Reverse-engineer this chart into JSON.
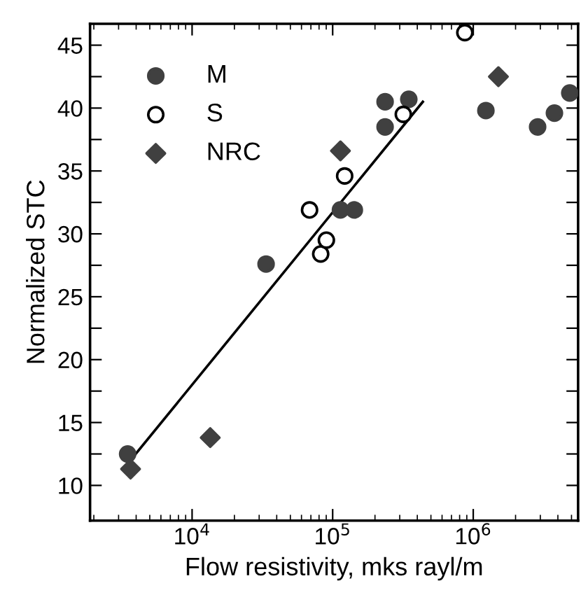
{
  "chart_data": {
    "type": "scatter",
    "xlabel": "Flow resistivity, mks rayl/m",
    "ylabel": "Normalized STC",
    "log": "x",
    "xlim": [
      1880,
      5570000
    ],
    "ylim": [
      7.2,
      46.7
    ],
    "xticks": [
      {
        "value": 10000,
        "label": "10$^{4}$"
      },
      {
        "value": 100000,
        "label": "10$^{5}$"
      },
      {
        "value": 1000000,
        "label": "10$^{6}$"
      }
    ],
    "yticks": [
      10,
      {
        "value": 12.5,
        "label": null
      },
      15,
      {
        "value": 17.5,
        "label": null
      },
      20,
      {
        "value": 22.5,
        "label": null
      },
      25,
      {
        "value": 27.5,
        "label": null
      },
      30,
      {
        "value": 32.5,
        "label": null
      },
      35,
      {
        "value": 37.5,
        "label": null
      },
      40,
      {
        "value": 42.5,
        "label": null
      },
      45
    ],
    "legend": "top left",
    "grid": false,
    "series": [
      {
        "name": "M",
        "color": "#404040",
        "marker": "circle",
        "x": [
          3480,
          33600,
          113600,
          142600,
          236000,
          236000,
          348000,
          1230000,
          2870000,
          3780000,
          4860000
        ],
        "values": [
          12.5,
          27.6,
          31.9,
          31.9,
          40.5,
          38.5,
          40.7,
          39.8,
          38.5,
          39.6,
          41.2
        ]
      },
      {
        "name": "S",
        "color": "#ffffff",
        "marker": "circle",
        "x": [
          82200,
          90200,
          68500,
          121700,
          318000,
          871000
        ],
        "values": [
          28.4,
          29.5,
          31.9,
          34.6,
          39.5,
          46.0
        ]
      },
      {
        "name": "NRC",
        "color": "#404040",
        "marker": "diamond",
        "x": [
          3650,
          13460,
          113600,
          1510000
        ],
        "values": [
          11.3,
          13.8,
          36.6,
          42.5
        ]
      },
      {
        "type": "line",
        "color": "#000000",
        "marker": "none",
        "line_style": "solid",
        "x": [
          3650,
          438000
        ],
        "values": [
          12.0,
          40.5
        ]
      }
    ]
  }
}
